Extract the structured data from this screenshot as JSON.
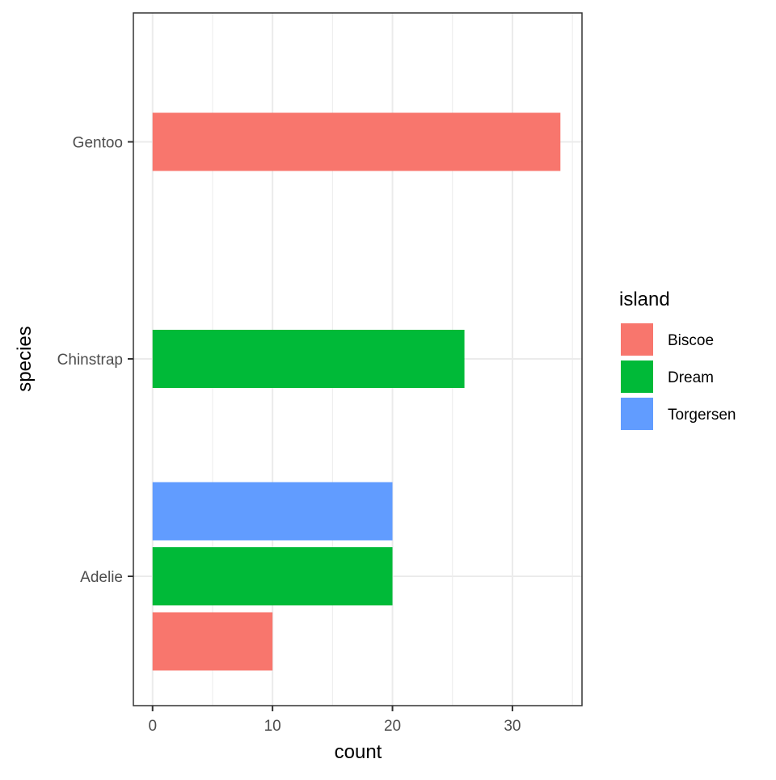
{
  "chart_data": {
    "type": "bar",
    "orientation": "horizontal",
    "position": "dodge",
    "xlabel": "count",
    "ylabel": "species",
    "xlim": [
      -1.6,
      35.8
    ],
    "x_ticks": [
      0,
      10,
      20,
      30
    ],
    "x_minor_ticks": [
      5,
      15,
      25,
      35
    ],
    "categories": [
      "Adelie",
      "Chinstrap",
      "Gentoo"
    ],
    "grid": true,
    "legend": {
      "title": "island",
      "position": "right",
      "entries": [
        {
          "label": "Biscoe",
          "color": "#F8766D"
        },
        {
          "label": "Dream",
          "color": "#00BA38"
        },
        {
          "label": "Torgersen",
          "color": "#619CFF"
        }
      ]
    },
    "bars": [
      {
        "species": "Adelie",
        "island": "Biscoe",
        "value": 10
      },
      {
        "species": "Adelie",
        "island": "Dream",
        "value": 20
      },
      {
        "species": "Adelie",
        "island": "Torgersen",
        "value": 20
      },
      {
        "species": "Chinstrap",
        "island": "Dream",
        "value": 26
      },
      {
        "species": "Gentoo",
        "island": "Biscoe",
        "value": 34
      }
    ],
    "colors": {
      "Biscoe": "#F8766D",
      "Dream": "#00BA38",
      "Torgersen": "#619CFF",
      "panel_border": "#333333",
      "grid": "#EBEBEB",
      "tick_text": "#4D4D4D"
    }
  }
}
